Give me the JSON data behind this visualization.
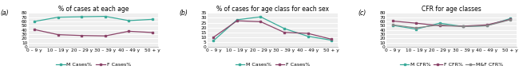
{
  "x_labels": [
    "0 – 9 y",
    "10 – 19 y",
    "20 – 29 y",
    "30 – 39 y",
    "40 – 49 y",
    "50 + y"
  ],
  "panel_a": {
    "title": "% of cases at each age",
    "label": "(a)",
    "ylim": [
      0,
      80
    ],
    "yticks": [
      0,
      10,
      20,
      30,
      40,
      50,
      60,
      70,
      80
    ],
    "M_Cases": [
      60,
      70,
      71,
      72,
      62,
      65
    ],
    "F_Cases": [
      41,
      29,
      27,
      26,
      37,
      34
    ]
  },
  "panel_b": {
    "title": "% of cases for age class for each sex",
    "label": "(b)",
    "ylim": [
      0,
      35
    ],
    "yticks": [
      0,
      5,
      10,
      15,
      20,
      25,
      30,
      35
    ],
    "M_Cases": [
      6.5,
      28,
      31,
      19,
      11,
      7
    ],
    "F_Cases": [
      10,
      27,
      26,
      15,
      14,
      8
    ]
  },
  "panel_c": {
    "title": "CFR for age classes",
    "label": "(c)",
    "ylim": [
      0,
      80
    ],
    "yticks": [
      0,
      10,
      20,
      30,
      40,
      50,
      60,
      70,
      80
    ],
    "M_CFR": [
      51,
      42,
      56,
      48,
      50,
      67
    ],
    "F_CFR": [
      61,
      56,
      50,
      49,
      52,
      65
    ],
    "MF_CFR": [
      52,
      45,
      52,
      48,
      50,
      64
    ]
  },
  "color_M": "#3aab9a",
  "color_F": "#8b4469",
  "color_MF": "#888888",
  "marker": "s",
  "linewidth": 0.9,
  "markersize": 2.0,
  "fontsize_title": 5.5,
  "fontsize_label": 5.5,
  "fontsize_tick": 4.2,
  "fontsize_legend": 4.5
}
